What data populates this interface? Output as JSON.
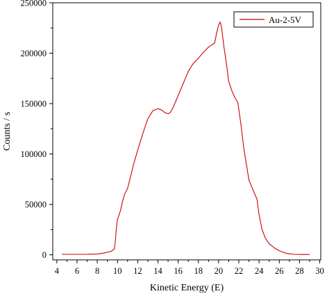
{
  "chart_data": {
    "type": "line",
    "xlabel": "Kinetic Energy (E)",
    "ylabel": "Counts / s",
    "xlim": [
      3.6,
      30.1
    ],
    "ylim": [
      -5000,
      250000
    ],
    "xticks": [
      4,
      6,
      8,
      10,
      12,
      14,
      16,
      18,
      20,
      22,
      24,
      26,
      28,
      30
    ],
    "xtick_labels": [
      "4",
      "6",
      "8",
      "10",
      "12",
      "14",
      "16",
      "18",
      "20",
      "22",
      "24",
      "26",
      "28",
      "30"
    ],
    "yticks": [
      0,
      50000,
      100000,
      150000,
      200000,
      250000
    ],
    "ytick_labels": [
      "0",
      "50000",
      "100000",
      "150000",
      "200000",
      "250000"
    ],
    "grid": false,
    "legend_position": "top-right",
    "series": [
      {
        "name": "Au-2-5V",
        "color": "#cc0000",
        "x": [
          4.5,
          5.0,
          6.0,
          7.0,
          8.0,
          8.5,
          9.0,
          9.4,
          9.7,
          9.8,
          9.9,
          10.0,
          10.3,
          10.5,
          10.7,
          11.0,
          11.3,
          11.6,
          12.0,
          12.5,
          13.0,
          13.5,
          14.0,
          14.3,
          14.7,
          15.0,
          15.2,
          15.5,
          16.0,
          16.5,
          17.0,
          17.5,
          18.0,
          18.5,
          19.0,
          19.3,
          19.6,
          19.8,
          20.0,
          20.15,
          20.3,
          20.5,
          20.8,
          21.0,
          21.3,
          21.6,
          21.9,
          22.2,
          22.5,
          23.0,
          23.5,
          23.8,
          24.0,
          24.3,
          24.6,
          25.0,
          25.5,
          26.0,
          26.5,
          27.0,
          27.5,
          28.0,
          29.0
        ],
        "y": [
          500,
          500,
          500,
          500,
          700,
          1500,
          2500,
          3500,
          6000,
          15000,
          28000,
          35000,
          44000,
          53000,
          60000,
          66000,
          78000,
          90000,
          104000,
          120000,
          135000,
          143000,
          145000,
          144000,
          141000,
          140000,
          141000,
          146000,
          158000,
          170000,
          182000,
          190000,
          195000,
          201000,
          206000,
          208000,
          210000,
          220000,
          228000,
          231000,
          225000,
          208000,
          188000,
          172000,
          163000,
          156000,
          151000,
          130000,
          105000,
          74000,
          62000,
          55000,
          40000,
          25000,
          17000,
          11000,
          7000,
          4000,
          2000,
          1000,
          500,
          400,
          300
        ]
      }
    ]
  }
}
